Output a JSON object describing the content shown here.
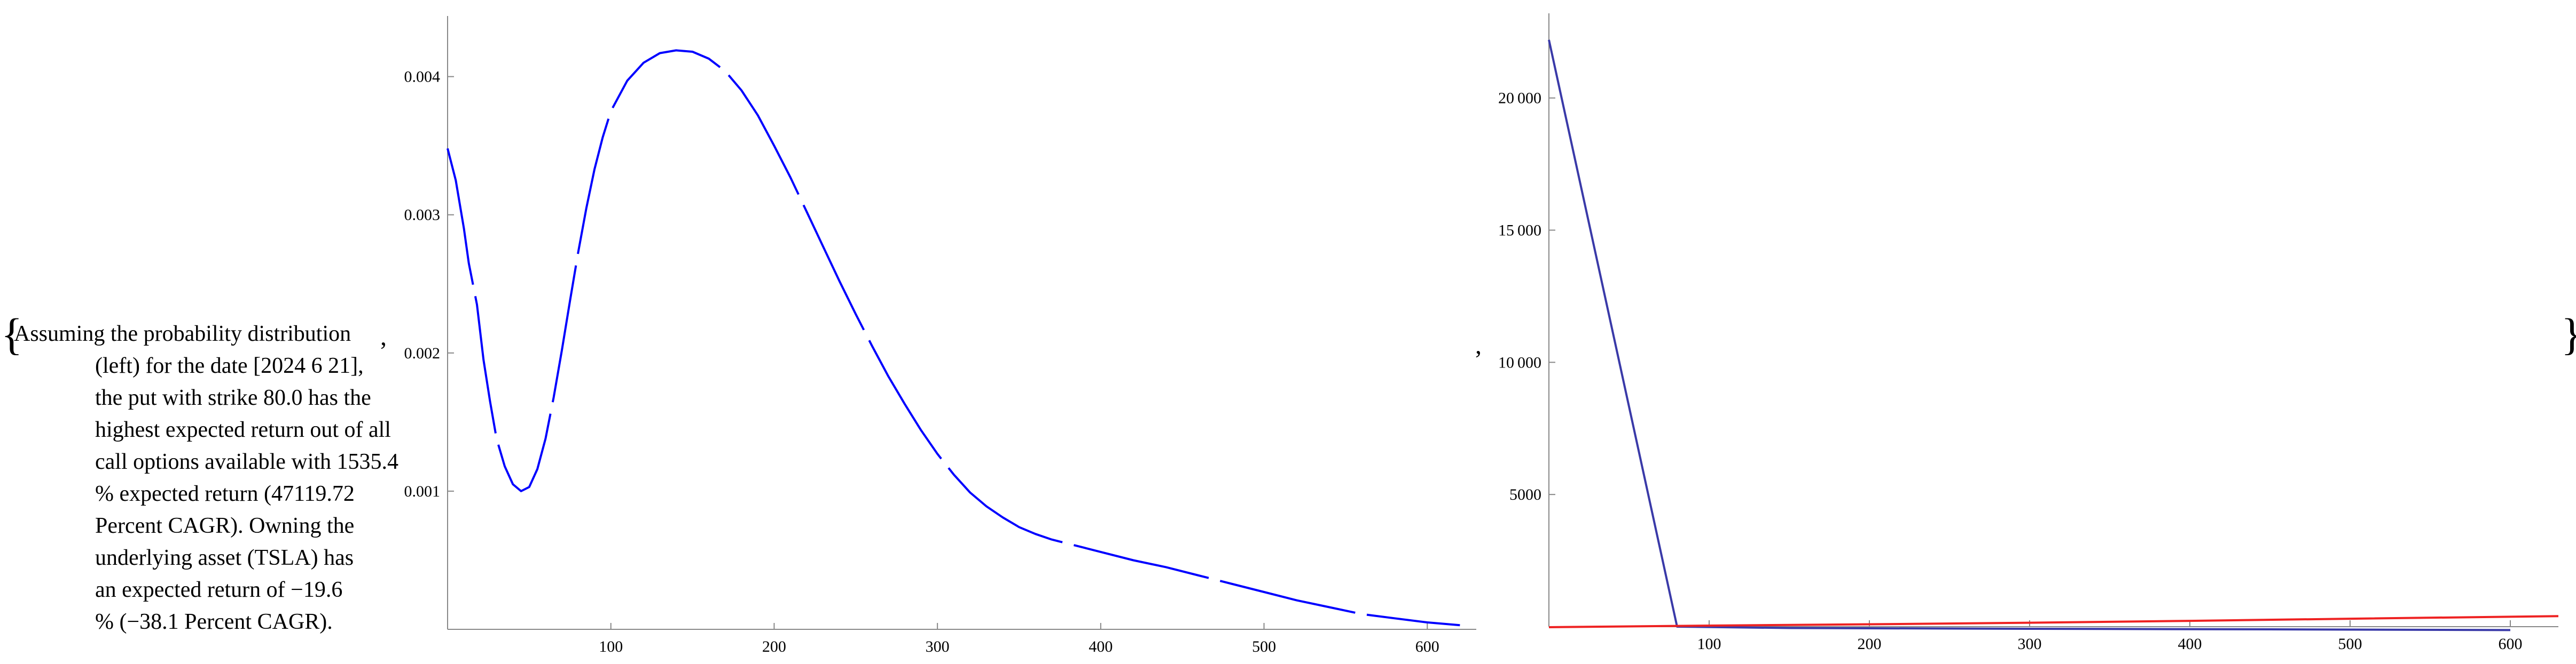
{
  "caption": {
    "open_brace": "{",
    "close_brace": "}",
    "separator": ",",
    "lines": [
      "Assuming the probability distribution",
      "(left) for the date [2024 6 21],",
      "the put with strike 80.0 has the",
      "highest expected return out of all",
      "call options available with 1535.4",
      "% expected return (47119.72",
      "Percent CAGR). Owning the",
      "underlying asset (TSLA) has",
      "an expected return of −19.6",
      "% (−38.1 Percent CAGR)."
    ]
  },
  "chart_data": [
    {
      "type": "line",
      "title": "",
      "xlabel": "",
      "ylabel": "",
      "xlim": [
        0,
        630
      ],
      "ylim": [
        0,
        0.0044
      ],
      "x_ticks": [
        100,
        200,
        300,
        400,
        500,
        600
      ],
      "x_tick_labels": [
        "100",
        "200",
        "300",
        "400",
        "500",
        "600"
      ],
      "y_ticks": [
        0.001,
        0.002,
        0.003,
        0.004
      ],
      "y_tick_labels": [
        "0.001",
        "0.002",
        "0.003",
        "0.004"
      ],
      "grid": false,
      "series": [
        {
          "color": "#0000ff",
          "style": "solid-with-gaps",
          "x": [
            0,
            5,
            10,
            13,
            18,
            22,
            26,
            30,
            35,
            40,
            45,
            50,
            55,
            60,
            65,
            70,
            75,
            80,
            85,
            90,
            95,
            100,
            110,
            120,
            130,
            140,
            150,
            160,
            170,
            180,
            190,
            200,
            210,
            220,
            230,
            240,
            250,
            260,
            270,
            280,
            290,
            300,
            310,
            320,
            330,
            340,
            350,
            360,
            370,
            380,
            390,
            400,
            420,
            440,
            460,
            480,
            500,
            520,
            540,
            560,
            580,
            600,
            620
          ],
          "y": [
            0.00348,
            0.00325,
            0.0029,
            0.00265,
            0.00235,
            0.00195,
            0.00165,
            0.00138,
            0.00118,
            0.00105,
            0.001,
            0.00103,
            0.00116,
            0.00138,
            0.00168,
            0.00202,
            0.00238,
            0.00273,
            0.00305,
            0.00333,
            0.00356,
            0.00375,
            0.00397,
            0.0041,
            0.00417,
            0.00419,
            0.00418,
            0.00413,
            0.00404,
            0.0039,
            0.00372,
            0.0035,
            0.00327,
            0.00302,
            0.00277,
            0.00252,
            0.00228,
            0.00205,
            0.00183,
            0.00163,
            0.00144,
            0.00127,
            0.00112,
            0.00099,
            0.00089,
            0.00081,
            0.00074,
            0.00069,
            0.00065,
            0.00062,
            0.00059,
            0.00056,
            0.0005,
            0.00045,
            0.00039,
            0.00033,
            0.00027,
            0.00021,
            0.00016,
            0.00011,
            8e-05,
            5e-05,
            3e-05
          ]
        }
      ]
    },
    {
      "type": "line",
      "title": "",
      "xlabel": "",
      "ylabel": "",
      "xlim": [
        0,
        630
      ],
      "ylim": [
        0,
        23000
      ],
      "x_ticks": [
        100,
        200,
        300,
        400,
        500,
        600
      ],
      "x_tick_labels": [
        "100",
        "200",
        "300",
        "400",
        "500",
        "600"
      ],
      "y_ticks": [
        5000,
        10000,
        15000,
        20000
      ],
      "y_tick_labels": [
        "5000",
        "10 000",
        "15 000",
        "20 000"
      ],
      "grid": false,
      "series": [
        {
          "color": "#3a3aa8",
          "x": [
            0,
            80,
            150,
            300,
            450,
            600
          ],
          "y": [
            22200,
            0,
            -50,
            -80,
            -100,
            -130
          ]
        },
        {
          "color": "#ee2222",
          "x": [
            0,
            100,
            200,
            300,
            400,
            500,
            630
          ],
          "y": [
            -20,
            40,
            90,
            150,
            220,
            300,
            400
          ]
        }
      ]
    }
  ]
}
